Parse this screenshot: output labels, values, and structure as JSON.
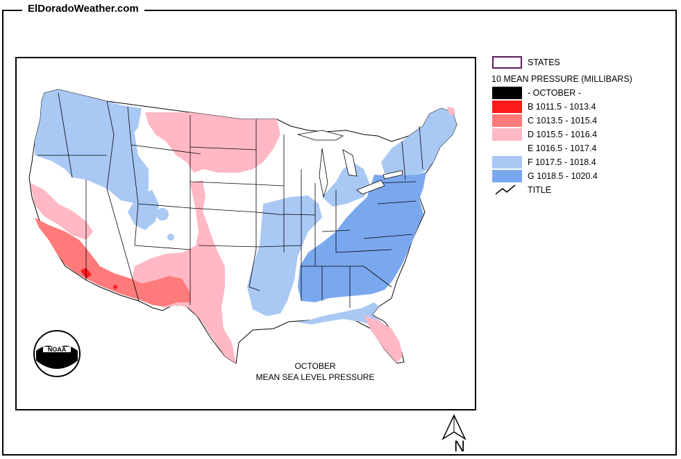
{
  "site": {
    "title": "ElDoradoWeather.com"
  },
  "map": {
    "caption_month": "OCTOBER",
    "caption_subtitle": "MEAN SEA LEVEL PRESSURE",
    "logo_text": "NOAA"
  },
  "legend": {
    "states_label": "STATES",
    "heading": "10 MEAN PRESSURE (MILLIBARS)",
    "items": [
      {
        "label": "- OCTOBER -",
        "color": "#000000"
      },
      {
        "label": "B 1011.5 - 1013.4",
        "color": "#ff1a1a"
      },
      {
        "label": "C 1013.5 - 1015.4",
        "color": "#ff7a7a"
      },
      {
        "label": "D 1015.5 - 1016.4",
        "color": "#ffb8c4"
      },
      {
        "label": "E 1016.5 - 1017.4",
        "color": "#ffffff"
      },
      {
        "label": "F 1017.5 - 1018.4",
        "color": "#a9c8f4"
      },
      {
        "label": "G 1018.5 - 1020.4",
        "color": "#7aa8ee"
      }
    ],
    "title_label": "TITLE",
    "states_border_color": "#5a1a5a"
  },
  "north_arrow": {
    "label": "N"
  },
  "colors": {
    "frame": "#000000",
    "background": "#ffffff"
  }
}
